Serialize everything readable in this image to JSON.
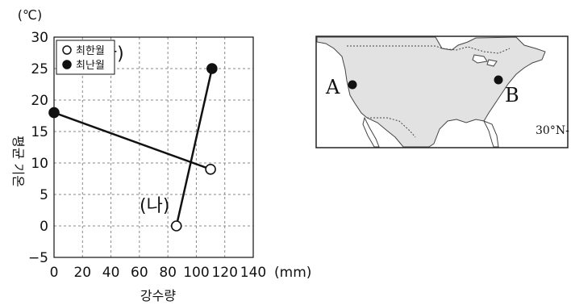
{
  "chart_data": {
    "type": "line",
    "y_unit": "(℃)",
    "x_unit": "(mm)",
    "xlabel": "강수량",
    "ylabel": "평균 기온",
    "xlim": [
      0,
      140
    ],
    "ylim": [
      -5,
      30
    ],
    "x_ticks": [
      0,
      20,
      40,
      60,
      80,
      100,
      120,
      140
    ],
    "y_ticks": [
      30,
      25,
      20,
      15,
      10,
      5,
      0,
      -5
    ],
    "grid": true,
    "legend_position": "top-left",
    "legend": [
      {
        "label": "최한월",
        "marker": "open-circle"
      },
      {
        "label": "최난월",
        "marker": "filled-circle"
      }
    ],
    "series": [
      {
        "name": "(가)",
        "points": [
          {
            "month": "최난월",
            "x": 0,
            "y": 18
          },
          {
            "month": "최한월",
            "x": 110,
            "y": 9
          }
        ]
      },
      {
        "name": "(나)",
        "points": [
          {
            "month": "최한월",
            "x": 86,
            "y": 0
          },
          {
            "month": "최난월",
            "x": 111,
            "y": 25
          }
        ]
      }
    ]
  },
  "map": {
    "point_a": "A",
    "point_b": "B",
    "latitude_label": "30°N-",
    "land_color": "#e2e2e2",
    "sea_color": "#ffffff"
  }
}
